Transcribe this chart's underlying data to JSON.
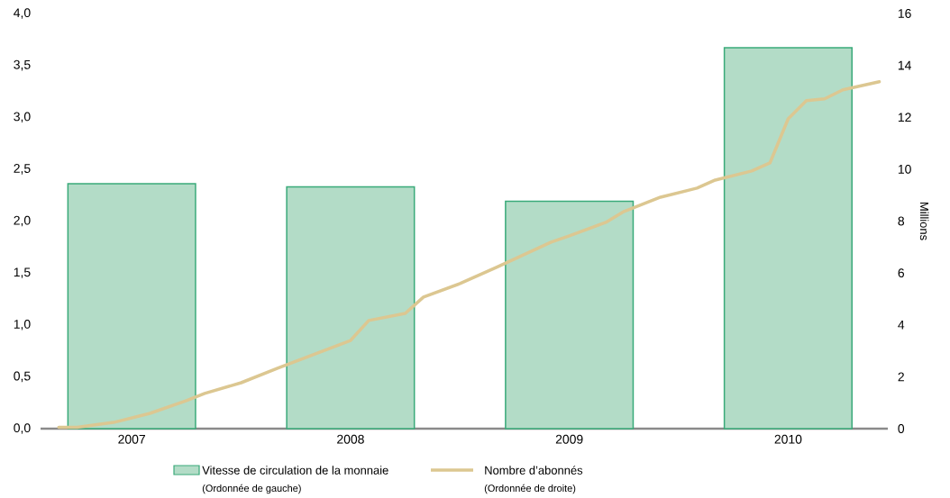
{
  "chart_data": {
    "type": "bar",
    "x": [
      "2007-07",
      "2008-07",
      "2009-07",
      "2010-07"
    ],
    "xlim": [
      "2007-02",
      "2010-12-15"
    ],
    "xticks": [
      {
        "value": "2007-07",
        "label": "2007"
      },
      {
        "value": "2008-07",
        "label": "2008"
      },
      {
        "value": "2009-07",
        "label": "2009"
      },
      {
        "value": "2010-07",
        "label": "2010"
      }
    ],
    "y2label": "Millions",
    "legend": "bottom",
    "annotations": [
      "(Ordonnée de gauche)",
      "(Ordonnée de droite)"
    ],
    "ylim": [
      0,
      4
    ],
    "yticks": [
      {
        "value": 0,
        "label": "0,0"
      },
      {
        "value": 0.5,
        "label": "0,5"
      },
      {
        "value": 1,
        "label": "1,0"
      },
      {
        "value": 1.5,
        "label": "1,5"
      },
      {
        "value": 2,
        "label": "2,0"
      },
      {
        "value": 2.5,
        "label": "2,5"
      },
      {
        "value": 3,
        "label": "3,0"
      },
      {
        "value": 3.5,
        "label": "3,5"
      },
      {
        "value": 4,
        "label": "4,0"
      }
    ],
    "y2lim": [
      0,
      16
    ],
    "y2ticks": [
      0,
      2,
      4,
      6,
      8,
      10,
      12,
      14,
      16
    ],
    "series": [
      {
        "name": "Vitesse de circulation de la monnaie",
        "color": "#b3dcc7",
        "values": [
          2.36,
          2.33,
          2.19,
          3.67
        ]
      },
      {
        "name": "Nombre d’abonnés",
        "type": "line",
        "axis": "y2",
        "color": "#dcc791",
        "line_style": "solid",
        "marker": "none",
        "x": [
          "2007-03",
          "2007-04",
          "2007-06",
          "2007-08",
          "2007-10",
          "2007-11",
          "2008-01",
          "2008-03",
          "2008-07",
          "2008-08",
          "2008-10",
          "2008-11",
          "2009-01",
          "2009-03",
          "2009-06",
          "2009-07",
          "2009-09",
          "2009-10",
          "2009-12",
          "2010-02",
          "2010-03",
          "2010-05",
          "2010-06",
          "2010-07",
          "2010-08",
          "2010-09",
          "2010-10",
          "2010-12"
        ],
        "values": [
          0.05,
          0.05,
          0.24,
          0.59,
          1.08,
          1.36,
          1.77,
          2.33,
          3.4,
          4.17,
          4.44,
          5.07,
          5.59,
          6.22,
          7.19,
          7.43,
          7.95,
          8.37,
          8.92,
          9.27,
          9.58,
          9.93,
          10.24,
          11.94,
          12.64,
          12.71,
          13.06,
          13.37
        ]
      }
    ]
  }
}
